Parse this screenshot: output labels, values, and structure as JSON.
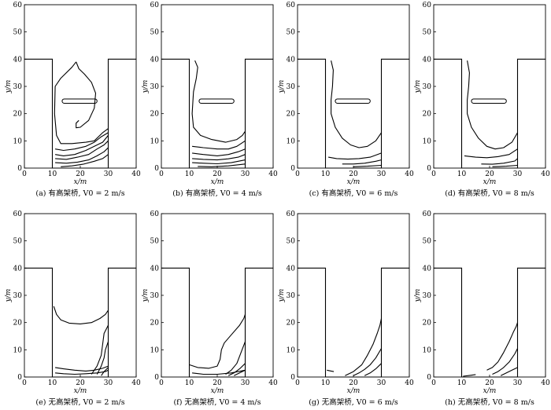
{
  "figure": {
    "axes_common": {
      "xlabel": "x/m",
      "ylabel": "y/m",
      "xlim": [
        0,
        40
      ],
      "ylim": [
        0,
        60
      ],
      "xticks": [
        "0",
        "10",
        "20",
        "30",
        "40"
      ],
      "yticks": [
        "0",
        "10",
        "20",
        "30",
        "40",
        "50",
        "60"
      ]
    },
    "geometry": {
      "canyon_outline": [
        [
          0,
          40
        ],
        [
          10,
          40
        ],
        [
          10,
          0
        ],
        [
          30,
          0
        ],
        [
          30,
          40
        ],
        [
          40,
          40
        ]
      ],
      "bridge_deck": {
        "x": [
          13.5,
          26
        ],
        "y": [
          23.8,
          25.4
        ]
      }
    },
    "panels": [
      {
        "caption_tag": "(a)",
        "caption_text": "有高架桥, V0 = 2 m/s",
        "bridge": true,
        "contours": [
          [
            [
              18.5,
              39
            ],
            [
              17,
              37
            ],
            [
              13,
              33
            ],
            [
              11,
              30
            ],
            [
              10.8,
              20
            ],
            [
              11.5,
              12
            ],
            [
              13,
              9
            ],
            [
              17,
              9
            ],
            [
              22,
              9.5
            ],
            [
              25,
              10
            ],
            [
              28,
              13
            ],
            [
              30,
              14.5
            ]
          ],
          [
            [
              18.5,
              39
            ],
            [
              19.5,
              36.5
            ],
            [
              21.5,
              34.5
            ],
            [
              24,
              31.5
            ],
            [
              25.5,
              27.5
            ],
            [
              25,
              22
            ],
            [
              23,
              17.5
            ],
            [
              20,
              15
            ],
            [
              18.5,
              14.8
            ],
            [
              18.5,
              16.5
            ],
            [
              19.5,
              17.5
            ]
          ],
          [
            [
              11,
              7
            ],
            [
              14,
              6.5
            ],
            [
              18,
              7
            ],
            [
              22,
              8
            ],
            [
              25,
              9.5
            ],
            [
              27.5,
              11.5
            ],
            [
              30,
              13
            ]
          ],
          [
            [
              11,
              5
            ],
            [
              14,
              4.5
            ],
            [
              18,
              5
            ],
            [
              22,
              6.5
            ],
            [
              25,
              8
            ],
            [
              28,
              9.5
            ],
            [
              30,
              12
            ]
          ],
          [
            [
              11,
              3.5
            ],
            [
              15,
              3.2
            ],
            [
              19,
              4
            ],
            [
              23,
              5
            ],
            [
              26,
              7
            ],
            [
              28.5,
              8.5
            ],
            [
              30,
              10
            ]
          ],
          [
            [
              11,
              2
            ],
            [
              15,
              1.8
            ],
            [
              19,
              2.2
            ],
            [
              23,
              3
            ],
            [
              26,
              4.5
            ],
            [
              28.5,
              6
            ],
            [
              30,
              7.5
            ]
          ],
          [
            [
              13,
              0.5
            ],
            [
              17,
              0.8
            ],
            [
              21,
              1.4
            ],
            [
              25,
              2.5
            ],
            [
              28,
              3.5
            ],
            [
              30,
              5
            ]
          ]
        ]
      },
      {
        "caption_tag": "(b)",
        "caption_text": "有高架桥, V0 = 4 m/s",
        "bridge": true,
        "contours": [
          [
            [
              12,
              39.5
            ],
            [
              13,
              37
            ],
            [
              12.5,
              33
            ],
            [
              11.5,
              28
            ],
            [
              11,
              20
            ],
            [
              11.5,
              15
            ],
            [
              14,
              12
            ],
            [
              18,
              10.5
            ],
            [
              23,
              9.5
            ],
            [
              27,
              10.5
            ],
            [
              29,
              12
            ],
            [
              30,
              13.5
            ]
          ],
          [
            [
              11,
              8
            ],
            [
              15,
              7.5
            ],
            [
              20,
              7
            ],
            [
              24,
              7
            ],
            [
              27,
              8
            ],
            [
              30,
              10
            ]
          ],
          [
            [
              11,
              5.5
            ],
            [
              15,
              5
            ],
            [
              20,
              4.5
            ],
            [
              24,
              5
            ],
            [
              27.5,
              6
            ],
            [
              30,
              7
            ]
          ],
          [
            [
              11,
              3.5
            ],
            [
              15,
              3.2
            ],
            [
              20,
              3
            ],
            [
              24,
              3.4
            ],
            [
              27.5,
              4
            ],
            [
              30,
              5
            ]
          ],
          [
            [
              11,
              2
            ],
            [
              15,
              1.8
            ],
            [
              20,
              1.6
            ],
            [
              25,
              2
            ],
            [
              30,
              3
            ]
          ],
          [
            [
              13,
              0.6
            ],
            [
              18,
              0.5
            ],
            [
              24,
              0.8
            ],
            [
              30,
              1.5
            ]
          ]
        ]
      },
      {
        "caption_tag": "(c)",
        "caption_text": "有高架桥, V0 = 6 m/s",
        "bridge": true,
        "contours": [
          [
            [
              12,
              39.5
            ],
            [
              12.8,
              36
            ],
            [
              12.5,
              30
            ],
            [
              12,
              25
            ],
            [
              12,
              20
            ],
            [
              13.5,
              15
            ],
            [
              16,
              11
            ],
            [
              19,
              8.5
            ],
            [
              22,
              7.5
            ],
            [
              25,
              8
            ],
            [
              28,
              10
            ],
            [
              30,
              13
            ]
          ],
          [
            [
              11,
              4
            ],
            [
              14,
              3.5
            ],
            [
              18,
              3.3
            ],
            [
              22,
              3.5
            ],
            [
              26,
              4
            ],
            [
              30,
              5.5
            ]
          ],
          [
            [
              16,
              1.5
            ],
            [
              20,
              1.5
            ],
            [
              24,
              1.8
            ],
            [
              28,
              2.5
            ],
            [
              30,
              3
            ]
          ],
          [
            [
              20,
              0.5
            ],
            [
              25,
              0.7
            ],
            [
              30,
              1
            ]
          ]
        ]
      },
      {
        "caption_tag": "(d)",
        "caption_text": "有高架桥, V0 = 8 m/s",
        "bridge": true,
        "contours": [
          [
            [
              12,
              39.5
            ],
            [
              12.8,
              35
            ],
            [
              12.5,
              30
            ],
            [
              12,
              25
            ],
            [
              12,
              20
            ],
            [
              13.5,
              15
            ],
            [
              16,
              11
            ],
            [
              19,
              8
            ],
            [
              22,
              7
            ],
            [
              25,
              7.5
            ],
            [
              28,
              9.5
            ],
            [
              30,
              13
            ]
          ],
          [
            [
              11,
              4.5
            ],
            [
              15,
              4
            ],
            [
              19,
              3.8
            ],
            [
              23,
              4.2
            ],
            [
              27,
              5
            ],
            [
              30,
              7
            ]
          ],
          [
            [
              17,
              1.5
            ],
            [
              21,
              1.4
            ],
            [
              25,
              1.8
            ],
            [
              29,
              2.6
            ],
            [
              30,
              3.5
            ]
          ],
          [
            [
              21,
              0.5
            ],
            [
              26,
              0.7
            ],
            [
              30,
              1
            ]
          ]
        ]
      },
      {
        "caption_tag": "(e)",
        "caption_text": "无高架桥, V0 = 2 m/s",
        "bridge": false,
        "contours": [
          [
            [
              10.5,
              26
            ],
            [
              11.5,
              23
            ],
            [
              13,
              21
            ],
            [
              16,
              19.8
            ],
            [
              20,
              19.5
            ],
            [
              24,
              20
            ],
            [
              27,
              21.5
            ],
            [
              29,
              23
            ],
            [
              30,
              24.5
            ]
          ],
          [
            [
              24,
              1
            ],
            [
              26,
              4
            ],
            [
              27.5,
              8
            ],
            [
              28,
              12
            ],
            [
              28.5,
              16
            ],
            [
              30,
              19
            ]
          ],
          [
            [
              26,
              1
            ],
            [
              27.5,
              4
            ],
            [
              28.5,
              7
            ],
            [
              29,
              10
            ],
            [
              30,
              13
            ]
          ],
          [
            [
              11,
              3.5
            ],
            [
              14,
              3
            ],
            [
              18,
              2.5
            ],
            [
              22,
              2.2
            ],
            [
              25,
              2.5
            ],
            [
              28,
              3.2
            ],
            [
              30,
              4
            ]
          ],
          [
            [
              11,
              1.5
            ],
            [
              14,
              1.2
            ],
            [
              18,
              1
            ],
            [
              22,
              1.2
            ],
            [
              26,
              1.5
            ],
            [
              29,
              2
            ],
            [
              30,
              2.5
            ]
          ],
          [
            [
              27.5,
              0.5
            ],
            [
              28.5,
              2
            ],
            [
              29.5,
              3
            ],
            [
              30,
              3.5
            ]
          ]
        ]
      },
      {
        "caption_tag": "(f)",
        "caption_text": "无高架桥, V0 = 4 m/s",
        "bridge": false,
        "contours": [
          [
            [
              10,
              4.5
            ],
            [
              13,
              3.5
            ],
            [
              17,
              3.2
            ],
            [
              20,
              4
            ],
            [
              21,
              6.5
            ],
            [
              21.5,
              10
            ],
            [
              22.5,
              12.5
            ],
            [
              25,
              15.5
            ],
            [
              28,
              19
            ],
            [
              29.5,
              21.5
            ],
            [
              30,
              23
            ]
          ],
          [
            [
              23,
              1
            ],
            [
              25,
              2.5
            ],
            [
              27,
              5
            ],
            [
              28.5,
              9
            ],
            [
              30,
              13
            ]
          ],
          [
            [
              24,
              0.5
            ],
            [
              26,
              1.5
            ],
            [
              28,
              3
            ],
            [
              30,
              5
            ]
          ],
          [
            [
              11,
              1.5
            ],
            [
              15,
              1
            ],
            [
              20,
              1
            ],
            [
              25,
              1.5
            ],
            [
              30,
              2.5
            ]
          ],
          [
            [
              26,
              0.5
            ],
            [
              28,
              1.5
            ],
            [
              30,
              2.5
            ]
          ]
        ]
      },
      {
        "caption_tag": "(g)",
        "caption_text": "无高架桥, V0 = 6 m/s",
        "bridge": false,
        "contours": [
          [
            [
              10.5,
              2.5
            ],
            [
              12,
              2.2
            ],
            [
              13,
              2
            ]
          ],
          [
            [
              17,
              0.5
            ],
            [
              20,
              2
            ],
            [
              23,
              4.5
            ],
            [
              25,
              8
            ],
            [
              27,
              12
            ],
            [
              28.5,
              16
            ],
            [
              29.5,
              19
            ],
            [
              30,
              21.5
            ]
          ],
          [
            [
              20,
              0.5
            ],
            [
              22,
              1.5
            ],
            [
              24,
              2.8
            ],
            [
              26,
              4.5
            ],
            [
              28,
              7
            ],
            [
              30,
              10.5
            ]
          ],
          [
            [
              24,
              0.5
            ],
            [
              26,
              1.5
            ],
            [
              28,
              3
            ],
            [
              30,
              5
            ]
          ]
        ]
      },
      {
        "caption_tag": "(h)",
        "caption_text": "无高架桥, V0 = 8 m/s",
        "bridge": false,
        "contours": [
          [
            [
              10.5,
              0.3
            ],
            [
              13,
              0.6
            ],
            [
              15,
              0.9
            ]
          ],
          [
            [
              19,
              2.5
            ],
            [
              21,
              3.5
            ],
            [
              23,
              5.5
            ],
            [
              25,
              9
            ],
            [
              27,
              13
            ],
            [
              28.5,
              16.5
            ],
            [
              29.5,
              18.5
            ],
            [
              30,
              20
            ]
          ],
          [
            [
              21,
              1
            ],
            [
              23,
              2
            ],
            [
              25,
              3.5
            ],
            [
              27,
              5.5
            ],
            [
              29,
              8.5
            ],
            [
              30,
              10.5
            ]
          ],
          [
            [
              24,
              0.5
            ],
            [
              26,
              1.5
            ],
            [
              28,
              2.5
            ],
            [
              30,
              3.5
            ]
          ]
        ]
      }
    ]
  }
}
